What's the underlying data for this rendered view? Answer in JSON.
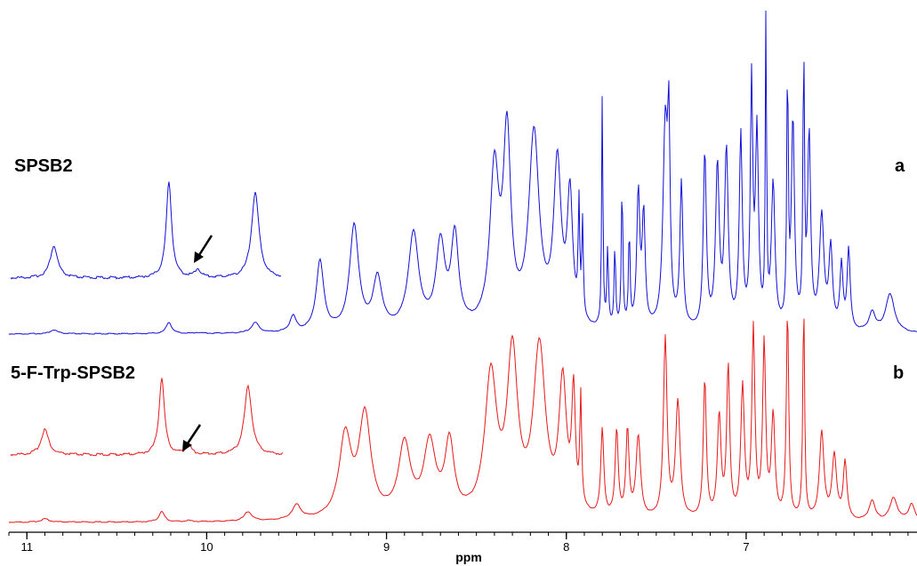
{
  "chart_data": {
    "type": "line",
    "xlabel": "ppm",
    "xlim": [
      11.1,
      6.05
    ],
    "x_reversed": true,
    "x_ticks": [
      11,
      10,
      9,
      8,
      7
    ],
    "x_tick_labels": [
      "11",
      "10",
      "9",
      "8",
      "7"
    ],
    "colors": {
      "a": "#1010d8",
      "b": "#e81818"
    },
    "series": [
      {
        "name": "SPSB2",
        "panel_letter": "a",
        "color": "#1010d8",
        "peaks": [
          [
            10.85,
            0.012,
            0.025
          ],
          [
            10.21,
            0.036,
            0.018
          ],
          [
            10.05,
            0.003,
            0.02
          ],
          [
            9.73,
            0.032,
            0.025
          ],
          [
            9.52,
            0.05,
            0.02
          ],
          [
            9.37,
            0.22,
            0.025
          ],
          [
            9.18,
            0.33,
            0.03
          ],
          [
            9.05,
            0.16,
            0.03
          ],
          [
            8.85,
            0.3,
            0.035
          ],
          [
            8.7,
            0.26,
            0.03
          ],
          [
            8.62,
            0.28,
            0.025
          ],
          [
            8.4,
            0.48,
            0.03
          ],
          [
            8.33,
            0.58,
            0.025
          ],
          [
            8.18,
            0.6,
            0.035
          ],
          [
            8.05,
            0.5,
            0.025
          ],
          [
            7.98,
            0.4,
            0.018
          ],
          [
            7.93,
            0.35,
            0.005
          ],
          [
            7.91,
            0.3,
            0.005
          ],
          [
            7.8,
            0.75,
            0.004
          ],
          [
            7.77,
            0.25,
            0.005
          ],
          [
            7.73,
            0.25,
            0.005
          ],
          [
            7.69,
            0.45,
            0.005
          ],
          [
            7.65,
            0.3,
            0.005
          ],
          [
            7.6,
            0.42,
            0.01
          ],
          [
            7.57,
            0.35,
            0.01
          ],
          [
            7.45,
            0.62,
            0.015
          ],
          [
            7.43,
            0.55,
            0.008
          ],
          [
            7.36,
            0.45,
            0.01
          ],
          [
            7.23,
            0.55,
            0.01
          ],
          [
            7.16,
            0.5,
            0.012
          ],
          [
            7.11,
            0.55,
            0.012
          ],
          [
            7.03,
            0.6,
            0.01
          ],
          [
            6.97,
            0.75,
            0.008
          ],
          [
            6.94,
            0.6,
            0.01
          ],
          [
            6.89,
            1.0,
            0.004
          ],
          [
            6.85,
            0.45,
            0.012
          ],
          [
            6.77,
            0.8,
            0.005
          ],
          [
            6.74,
            0.65,
            0.01
          ],
          [
            6.68,
            0.85,
            0.005
          ],
          [
            6.65,
            0.6,
            0.01
          ],
          [
            6.58,
            0.35,
            0.015
          ],
          [
            6.53,
            0.25,
            0.012
          ],
          [
            6.47,
            0.2,
            0.01
          ],
          [
            6.43,
            0.25,
            0.01
          ],
          [
            6.3,
            0.06,
            0.02
          ],
          [
            6.2,
            0.12,
            0.03
          ]
        ]
      },
      {
        "name": "5-F-Trp-SPSB2",
        "panel_letter": "b",
        "color": "#e81818",
        "peaks": [
          [
            10.9,
            0.012,
            0.025
          ],
          [
            10.25,
            0.036,
            0.018
          ],
          [
            10.1,
            0.004,
            0.02
          ],
          [
            9.77,
            0.032,
            0.025
          ],
          [
            9.5,
            0.05,
            0.03
          ],
          [
            9.23,
            0.28,
            0.04
          ],
          [
            9.12,
            0.35,
            0.04
          ],
          [
            8.9,
            0.25,
            0.04
          ],
          [
            8.76,
            0.25,
            0.04
          ],
          [
            8.65,
            0.25,
            0.03
          ],
          [
            8.42,
            0.48,
            0.04
          ],
          [
            8.3,
            0.55,
            0.035
          ],
          [
            8.15,
            0.58,
            0.04
          ],
          [
            8.02,
            0.45,
            0.025
          ],
          [
            7.96,
            0.4,
            0.012
          ],
          [
            7.92,
            0.38,
            0.006
          ],
          [
            7.8,
            0.3,
            0.01
          ],
          [
            7.72,
            0.3,
            0.01
          ],
          [
            7.66,
            0.3,
            0.01
          ],
          [
            7.6,
            0.28,
            0.015
          ],
          [
            7.45,
            0.62,
            0.012
          ],
          [
            7.38,
            0.4,
            0.015
          ],
          [
            7.23,
            0.48,
            0.01
          ],
          [
            7.15,
            0.35,
            0.012
          ],
          [
            7.1,
            0.52,
            0.01
          ],
          [
            7.02,
            0.45,
            0.012
          ],
          [
            6.96,
            0.65,
            0.01
          ],
          [
            6.9,
            0.6,
            0.01
          ],
          [
            6.85,
            0.35,
            0.012
          ],
          [
            6.77,
            0.72,
            0.008
          ],
          [
            6.68,
            0.75,
            0.006
          ],
          [
            6.58,
            0.3,
            0.015
          ],
          [
            6.51,
            0.22,
            0.015
          ],
          [
            6.45,
            0.2,
            0.012
          ],
          [
            6.3,
            0.07,
            0.02
          ],
          [
            6.18,
            0.08,
            0.025
          ],
          [
            6.08,
            0.06,
            0.02
          ]
        ]
      }
    ]
  },
  "labels": {
    "a_name": "SPSB2",
    "a_letter": "a",
    "b_name": "5-F-Trp-SPSB2",
    "b_letter": "b"
  }
}
